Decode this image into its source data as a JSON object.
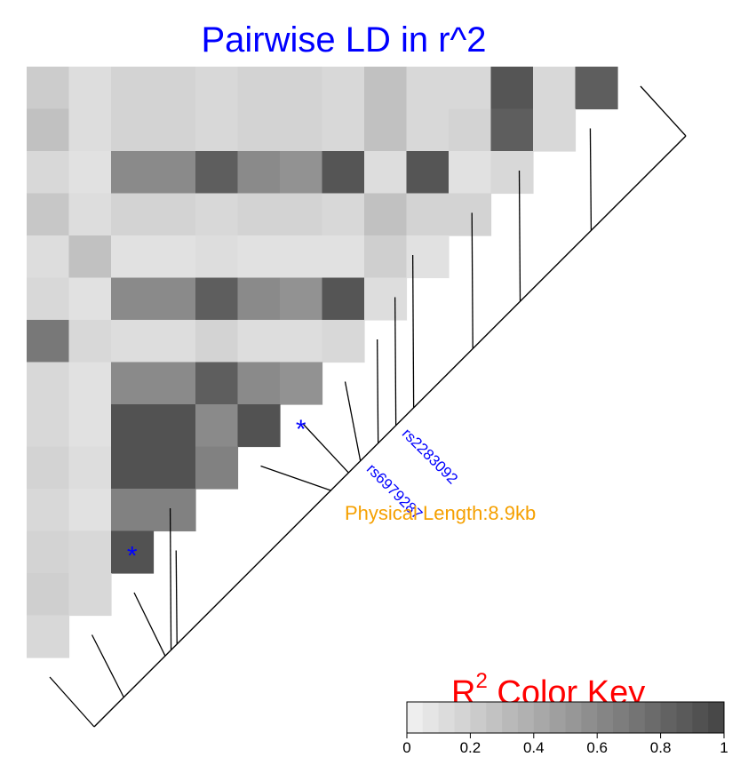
{
  "chart_data": {
    "type": "heatmap",
    "title": "Pairwise LD in r^2",
    "matrix": [
      [
        0.22,
        0.12,
        0.18,
        0.18,
        0.15,
        0.18,
        0.18,
        0.15,
        0.28,
        0.15,
        0.15,
        0.9,
        0.15,
        0.85
      ],
      [
        0.28,
        0.12,
        0.18,
        0.18,
        0.15,
        0.18,
        0.18,
        0.15,
        0.28,
        0.15,
        0.18,
        0.85,
        0.15
      ],
      [
        0.15,
        0.1,
        0.6,
        0.6,
        0.85,
        0.6,
        0.55,
        0.9,
        0.12,
        0.9,
        0.1,
        0.15
      ],
      [
        0.25,
        0.12,
        0.18,
        0.18,
        0.15,
        0.18,
        0.18,
        0.15,
        0.28,
        0.18,
        0.18
      ],
      [
        0.12,
        0.28,
        0.1,
        0.1,
        0.12,
        0.1,
        0.1,
        0.1,
        0.2,
        0.1
      ],
      [
        0.15,
        0.1,
        0.6,
        0.6,
        0.85,
        0.6,
        0.55,
        0.9,
        0.12
      ],
      [
        0.7,
        0.15,
        0.12,
        0.12,
        0.18,
        0.12,
        0.12,
        0.15
      ],
      [
        0.15,
        0.1,
        0.6,
        0.6,
        0.85,
        0.6,
        0.55
      ],
      [
        0.15,
        0.1,
        0.92,
        0.92,
        0.6,
        0.92
      ],
      [
        0.18,
        0.12,
        0.92,
        0.92,
        0.65
      ],
      [
        0.15,
        0.1,
        0.65,
        0.65
      ],
      [
        0.18,
        0.15,
        0.92
      ],
      [
        0.2,
        0.15
      ],
      [
        0.15
      ]
    ],
    "markers": [
      {
        "label": "rs2283092",
        "snp_index": 5,
        "star_cell": [
          11,
          2
        ]
      },
      {
        "label": "rs6979287",
        "snp_index": 7,
        "star_cell": [
          8,
          6
        ]
      }
    ],
    "physical_length": "Physical Length:8.9kb",
    "snp_positions_fraction": [
      0,
      0.16,
      0.28,
      0.36,
      0.46,
      0.49,
      0.52,
      0.55,
      0.57,
      0.6,
      0.87,
      0.86,
      0.88,
      0.95,
      1.0
    ],
    "color_key": {
      "title_base": "R",
      "title_sup": "2",
      "title_rest": " Color Key",
      "range": [
        0,
        1
      ],
      "ticks": [
        "0",
        "0.2",
        "0.4",
        "0.6",
        "0.8",
        "1"
      ],
      "low_color": "#f2f2f2",
      "high_color": "#444444"
    },
    "colors": {
      "title": "#0000ff",
      "key_title": "#ff0000",
      "physical": "#f5a000",
      "marker": "#0000ff"
    }
  }
}
